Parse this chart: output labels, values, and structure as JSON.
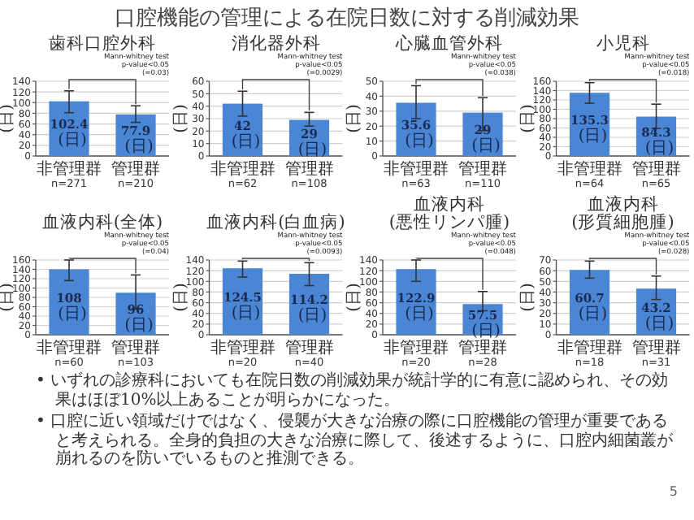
{
  "chart_data": [
    {
      "type": "other",
      "title": "口腔機能の管理による在院日数に対する削減効果",
      "annotations": [
        "• いずれの診療科においても在院日数の削減効果が統計学的に有意に認められ、その効果はほぼ10%以上あることが明らかになった。",
        "• 口腔に近い領域だけではなく、侵襲が大きな治療の際に口腔機能の管理が重要であると考えられる。全身的負担の大きな治療に際して、後述するように、口腔内細菌叢が崩れるのを防いでいるものと推測できる。",
        "5"
      ]
    },
    {
      "type": "bar",
      "title": "歯科口腔外科",
      "ylabel": "(日)",
      "categories": [
        "非管理群\nn=271",
        "管理群\nn=210"
      ],
      "values": [
        102.4,
        77.9
      ],
      "errors": [
        [
          81,
          122
        ],
        [
          63,
          94
        ]
      ],
      "value_labels": [
        "102.4\n(日)",
        "77.9\n(日)"
      ],
      "color": "#4a86d4",
      "ylim": [
        0,
        140
      ],
      "yticks": [
        0,
        20,
        40,
        60,
        80,
        100,
        120,
        140
      ],
      "grid": "y",
      "annotations": [
        "Mann-whitney test\np-value<0.05\n(=0.03)"
      ]
    },
    {
      "type": "bar",
      "title": "消化器外科",
      "ylabel": "(日)",
      "categories": [
        "非管理群\nn=62",
        "管理群\nn=108"
      ],
      "values": [
        42,
        29
      ],
      "errors": [
        [
          32,
          52
        ],
        [
          24,
          35
        ]
      ],
      "value_labels": [
        "42\n(日)",
        "29\n(日)"
      ],
      "color": "#4a86d4",
      "ylim": [
        0,
        60
      ],
      "yticks": [
        0,
        10,
        20,
        30,
        40,
        50,
        60
      ],
      "grid": "y",
      "annotations": [
        "Mann-whitney test\np-value<0.05\n(=0.0029)"
      ]
    },
    {
      "type": "bar",
      "title": "心臓血管外科",
      "ylabel": "(日)",
      "categories": [
        "非管理群\nn=63",
        "管理群\nn=110"
      ],
      "values": [
        35.6,
        29
      ],
      "errors": [
        [
          25,
          47
        ],
        [
          17,
          39
        ]
      ],
      "value_labels": [
        "35.6\n(日)",
        "29\n(日)"
      ],
      "color": "#4a86d4",
      "ylim": [
        0,
        50
      ],
      "yticks": [
        0,
        10,
        20,
        30,
        40,
        50
      ],
      "grid": "y",
      "annotations": [
        "Mann-whitney test\np-value<0.05\n(=0.038)"
      ]
    },
    {
      "type": "bar",
      "title": "小児科",
      "ylabel": "(日)",
      "categories": [
        "非管理群\nn=64",
        "管理群\nn=65"
      ],
      "values": [
        135.3,
        84.3
      ],
      "errors": [
        [
          113,
          157
        ],
        [
          59,
          111
        ]
      ],
      "value_labels": [
        "135.3\n(日)",
        "84.3\n(日)"
      ],
      "color": "#4a86d4",
      "ylim": [
        0,
        160
      ],
      "yticks": [
        0,
        20,
        40,
        60,
        80,
        100,
        120,
        140,
        160
      ],
      "grid": "y",
      "annotations": [
        "Mann-whitney test\np-value<0.05\n(=0.018)"
      ]
    },
    {
      "type": "bar",
      "title": "血液内科(全体)",
      "ylabel": "(日)",
      "categories": [
        "非管理群\nn=60",
        "管理群\nn=103"
      ],
      "values": [
        140,
        90
      ],
      "errors": [
        [
          116,
          160
        ],
        [
          55,
          128
        ]
      ],
      "color": "#4a86d4",
      "ylim": [
        0,
        160
      ],
      "yticks": [
        0,
        20,
        40,
        60,
        80,
        100,
        120,
        140,
        160
      ],
      "grid": "y",
      "annotations": [
        "Mann-whitney test\np-value<0.05\n(=0.04)",
        "108\n(日)",
        "96\n(日)"
      ]
    },
    {
      "type": "bar",
      "title": "血液内科(白血病)",
      "ylabel": "(日)",
      "categories": [
        "非管理群\nn=20",
        "管理群\nn=40"
      ],
      "values": [
        124.5,
        114.2
      ],
      "errors": [
        [
          108,
          138
        ],
        [
          92,
          135
        ]
      ],
      "value_labels": [
        "124.5\n(日)",
        "114.2\n(日)"
      ],
      "color": "#4a86d4",
      "ylim": [
        0,
        140
      ],
      "yticks": [
        0,
        20,
        40,
        60,
        80,
        100,
        120,
        140
      ],
      "grid": "y",
      "annotations": [
        "Mann-whitney test\np-value<0.05\n(=0.0093)"
      ]
    },
    {
      "type": "bar",
      "title": "血液内科\n(悪性リンパ腫)",
      "ylabel": "(日)",
      "categories": [
        "非管理群\nn=20",
        "管理群\nn=28"
      ],
      "values": [
        122.9,
        57.5
      ],
      "errors": [
        [
          100,
          140
        ],
        [
          45,
          81
        ]
      ],
      "value_labels": [
        "122.9\n(日)",
        "57.5\n(日)"
      ],
      "color": "#4a86d4",
      "ylim": [
        0,
        140
      ],
      "yticks": [
        0,
        20,
        40,
        60,
        80,
        100,
        120,
        140
      ],
      "grid": "y",
      "annotations": [
        "Mann-whitney test\np-value<0.05\n(=0.048)"
      ]
    },
    {
      "type": "bar",
      "title": "血液内科\n(形質細胞腫)",
      "ylabel": "(日)",
      "categories": [
        "非管理群\nn=18",
        "管理群\nn=31"
      ],
      "values": [
        60.7,
        43.2
      ],
      "errors": [
        [
          53,
          69
        ],
        [
          33,
          55
        ]
      ],
      "value_labels": [
        "60.7\n(日)",
        "43.2\n(日)"
      ],
      "color": "#4a86d4",
      "ylim": [
        0,
        70
      ],
      "yticks": [
        0,
        10,
        20,
        30,
        40,
        50,
        60,
        70
      ],
      "grid": "y",
      "annotations": [
        "Mann-whitney test\np-value<0.05\n(=0.028)"
      ]
    }
  ]
}
